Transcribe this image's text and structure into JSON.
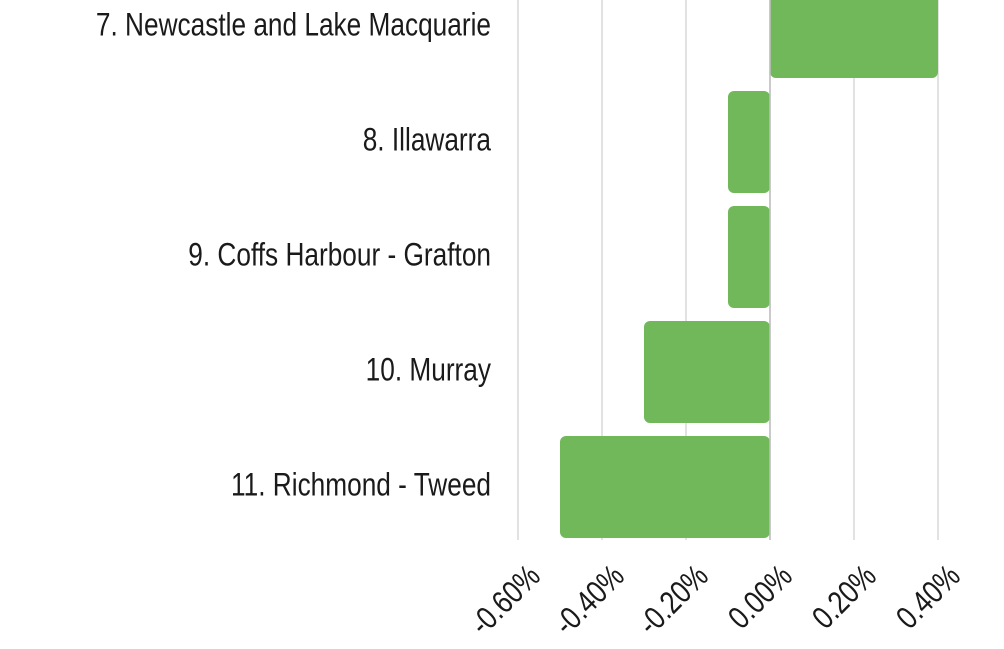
{
  "chart_data": {
    "type": "barh",
    "categories": [
      "7. Newcastle and Lake Macquarie",
      "8. Illawarra",
      "9. Coffs Harbour - Grafton",
      "10. Murray",
      "11. Richmond - Tweed"
    ],
    "values": [
      0.4,
      -0.1,
      -0.1,
      -0.3,
      -0.5
    ],
    "color": "#70b85a",
    "xlim": [
      -0.6,
      0.4
    ],
    "xticks": [
      {
        "value": -0.6,
        "label": "-0.60%"
      },
      {
        "value": -0.4,
        "label": "-0.40%"
      },
      {
        "value": -0.2,
        "label": "-0.20%"
      },
      {
        "value": 0,
        "label": "0.00%"
      },
      {
        "value": 0.2,
        "label": "0.20%"
      },
      {
        "value": 0.4,
        "label": "0.40%"
      }
    ],
    "grid": true
  }
}
